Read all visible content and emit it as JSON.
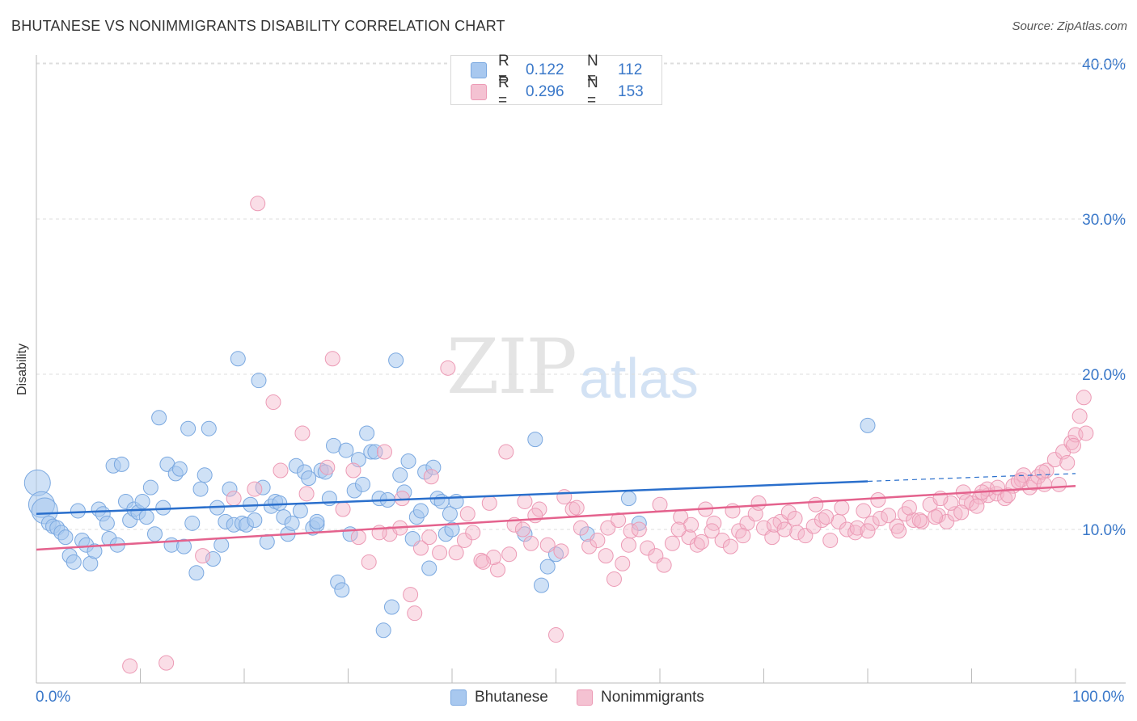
{
  "title": "BHUTANESE VS NONIMMIGRANTS DISABILITY CORRELATION CHART",
  "source": "Source: ZipAtlas.com",
  "watermark": {
    "zip": "ZIP",
    "atlas": "atlas"
  },
  "colors": {
    "blue": "#3a78c9",
    "blue_fill": "#a8c8ef",
    "pink": "#e4628d",
    "pink_fill": "#f4b6c9",
    "grid": "#dddddd"
  },
  "legend": {
    "rows": [
      {
        "r_label": "R =",
        "r_value": "0.122",
        "n_label": "N =",
        "n_value": "112"
      },
      {
        "r_label": "R =",
        "r_value": "0.296",
        "n_label": "N =",
        "n_value": "153"
      }
    ]
  },
  "chart_data": {
    "type": "scatter",
    "title": "BHUTANESE VS NONIMMIGRANTS DISABILITY CORRELATION CHART",
    "xlabel": "",
    "ylabel": "Disability",
    "xlim": [
      0,
      100
    ],
    "ylim": [
      0,
      41
    ],
    "x_tick_labels": [
      "0.0%",
      "100.0%"
    ],
    "y_ticks": [
      10,
      20,
      30,
      40
    ],
    "y_tick_labels": [
      "10.0%",
      "20.0%",
      "30.0%",
      "40.0%"
    ],
    "grid": true,
    "legend_position": "top-center",
    "series": [
      {
        "name": "Bhutanese",
        "color": "#3a78c9",
        "trend": {
          "x0": 0,
          "y0": 11.0,
          "x1": 80,
          "y1": 13.1,
          "dashed_to": 100,
          "dashed_y": 13.6
        },
        "points": [
          [
            0.1,
            13.0
          ],
          [
            0.5,
            11.6
          ],
          [
            0.8,
            11.2
          ],
          [
            1.2,
            10.4
          ],
          [
            1.6,
            10.2
          ],
          [
            2.0,
            10.1
          ],
          [
            2.4,
            9.8
          ],
          [
            2.8,
            9.5
          ],
          [
            3.2,
            8.3
          ],
          [
            3.6,
            7.9
          ],
          [
            4.0,
            11.2
          ],
          [
            4.4,
            9.3
          ],
          [
            4.8,
            9.0
          ],
          [
            5.2,
            7.8
          ],
          [
            5.6,
            8.6
          ],
          [
            6.0,
            11.3
          ],
          [
            6.4,
            11.0
          ],
          [
            6.8,
            10.4
          ],
          [
            7.0,
            9.4
          ],
          [
            7.4,
            14.1
          ],
          [
            7.8,
            9.0
          ],
          [
            8.2,
            14.2
          ],
          [
            8.6,
            11.8
          ],
          [
            9.0,
            10.6
          ],
          [
            9.4,
            11.3
          ],
          [
            9.8,
            11.1
          ],
          [
            10.2,
            11.8
          ],
          [
            10.6,
            10.8
          ],
          [
            11.0,
            12.7
          ],
          [
            11.4,
            9.7
          ],
          [
            11.8,
            17.2
          ],
          [
            12.2,
            11.4
          ],
          [
            12.6,
            14.2
          ],
          [
            13.0,
            9.0
          ],
          [
            13.4,
            13.6
          ],
          [
            13.8,
            13.9
          ],
          [
            14.2,
            8.9
          ],
          [
            14.6,
            16.5
          ],
          [
            15.0,
            10.4
          ],
          [
            15.4,
            7.2
          ],
          [
            15.8,
            12.6
          ],
          [
            16.2,
            13.5
          ],
          [
            16.6,
            16.5
          ],
          [
            17.0,
            8.1
          ],
          [
            17.4,
            11.4
          ],
          [
            17.8,
            9.0
          ],
          [
            18.2,
            10.5
          ],
          [
            18.6,
            12.6
          ],
          [
            19.0,
            10.3
          ],
          [
            19.4,
            21.0
          ],
          [
            19.8,
            10.4
          ],
          [
            20.2,
            10.3
          ],
          [
            20.6,
            11.6
          ],
          [
            21.0,
            10.6
          ],
          [
            21.4,
            19.6
          ],
          [
            21.8,
            12.7
          ],
          [
            22.2,
            9.2
          ],
          [
            22.6,
            11.5
          ],
          [
            23.0,
            11.8
          ],
          [
            23.4,
            11.7
          ],
          [
            23.8,
            10.8
          ],
          [
            24.2,
            9.7
          ],
          [
            24.6,
            10.4
          ],
          [
            25.0,
            14.1
          ],
          [
            25.4,
            11.2
          ],
          [
            25.8,
            13.7
          ],
          [
            26.2,
            13.3
          ],
          [
            26.6,
            10.1
          ],
          [
            27.0,
            10.3
          ],
          [
            27.4,
            13.8
          ],
          [
            27.8,
            13.7
          ],
          [
            28.2,
            12.0
          ],
          [
            28.6,
            15.4
          ],
          [
            29.0,
            6.6
          ],
          [
            29.4,
            6.1
          ],
          [
            29.8,
            15.1
          ],
          [
            30.2,
            9.7
          ],
          [
            30.6,
            12.5
          ],
          [
            31.0,
            14.5
          ],
          [
            31.4,
            12.9
          ],
          [
            31.8,
            16.2
          ],
          [
            32.2,
            15.0
          ],
          [
            32.6,
            15.0
          ],
          [
            33.0,
            12.0
          ],
          [
            33.4,
            3.5
          ],
          [
            33.8,
            11.9
          ],
          [
            34.2,
            5.0
          ],
          [
            34.6,
            20.9
          ],
          [
            35.0,
            13.5
          ],
          [
            35.4,
            12.4
          ],
          [
            35.8,
            14.4
          ],
          [
            36.2,
            9.4
          ],
          [
            36.6,
            10.8
          ],
          [
            37.0,
            11.2
          ],
          [
            37.4,
            13.7
          ],
          [
            37.8,
            7.5
          ],
          [
            38.2,
            14.0
          ],
          [
            38.6,
            12.0
          ],
          [
            39.0,
            11.8
          ],
          [
            39.4,
            9.7
          ],
          [
            39.8,
            11.0
          ],
          [
            40.0,
            10.0
          ],
          [
            40.4,
            11.8
          ],
          [
            47.0,
            9.7
          ],
          [
            48.0,
            15.8
          ],
          [
            48.6,
            6.4
          ],
          [
            49.2,
            7.6
          ],
          [
            50.0,
            8.4
          ],
          [
            53.0,
            9.7
          ],
          [
            57.0,
            12.0
          ],
          [
            58.0,
            10.4
          ],
          [
            80.0,
            16.7
          ],
          [
            27.0,
            10.5
          ]
        ]
      },
      {
        "name": "Nonimmigrants",
        "color": "#e4628d",
        "trend": {
          "x0": 0,
          "y0": 8.7,
          "x1": 100,
          "y1": 12.8
        },
        "points": [
          [
            9.0,
            1.2
          ],
          [
            12.5,
            1.4
          ],
          [
            16.0,
            8.3
          ],
          [
            21.3,
            31.0
          ],
          [
            22.8,
            18.2
          ],
          [
            25.6,
            16.2
          ],
          [
            28.5,
            21.0
          ],
          [
            28.0,
            14.0
          ],
          [
            29.5,
            11.3
          ],
          [
            30.5,
            13.8
          ],
          [
            31.0,
            9.5
          ],
          [
            32.0,
            7.9
          ],
          [
            33.5,
            15.0
          ],
          [
            34.0,
            9.7
          ],
          [
            35.2,
            12.0
          ],
          [
            36.0,
            5.8
          ],
          [
            36.4,
            4.6
          ],
          [
            37.0,
            8.8
          ],
          [
            37.8,
            9.5
          ],
          [
            38.8,
            8.5
          ],
          [
            39.6,
            20.4
          ],
          [
            40.4,
            8.5
          ],
          [
            41.2,
            9.3
          ],
          [
            42.0,
            9.8
          ],
          [
            42.8,
            8.0
          ],
          [
            43.6,
            11.7
          ],
          [
            44.4,
            7.4
          ],
          [
            45.2,
            15.0
          ],
          [
            46.0,
            10.3
          ],
          [
            46.8,
            10.0
          ],
          [
            47.6,
            9.1
          ],
          [
            48.4,
            11.3
          ],
          [
            49.2,
            9.0
          ],
          [
            50.0,
            3.2
          ],
          [
            50.8,
            12.1
          ],
          [
            51.6,
            11.3
          ],
          [
            52.4,
            10.1
          ],
          [
            53.2,
            8.9
          ],
          [
            54.0,
            9.3
          ],
          [
            54.8,
            8.3
          ],
          [
            55.6,
            6.8
          ],
          [
            56.4,
            7.8
          ],
          [
            57.2,
            9.9
          ],
          [
            58.0,
            10.0
          ],
          [
            58.8,
            8.8
          ],
          [
            59.6,
            8.3
          ],
          [
            60.4,
            7.7
          ],
          [
            61.2,
            9.1
          ],
          [
            62.0,
            10.8
          ],
          [
            62.8,
            9.5
          ],
          [
            63.6,
            9.0
          ],
          [
            64.4,
            11.3
          ],
          [
            65.2,
            10.4
          ],
          [
            66.0,
            9.3
          ],
          [
            66.8,
            8.9
          ],
          [
            67.6,
            9.9
          ],
          [
            68.4,
            10.4
          ],
          [
            69.2,
            11.0
          ],
          [
            70.0,
            10.1
          ],
          [
            70.8,
            9.5
          ],
          [
            71.6,
            10.5
          ],
          [
            72.4,
            11.1
          ],
          [
            73.2,
            9.8
          ],
          [
            74.0,
            9.6
          ],
          [
            74.8,
            10.2
          ],
          [
            75.6,
            10.6
          ],
          [
            76.4,
            9.3
          ],
          [
            77.2,
            10.5
          ],
          [
            78.0,
            10.0
          ],
          [
            78.8,
            9.8
          ],
          [
            79.6,
            11.2
          ],
          [
            80.4,
            10.4
          ],
          [
            81.2,
            10.7
          ],
          [
            82.0,
            10.9
          ],
          [
            82.8,
            10.2
          ],
          [
            83.6,
            11.0
          ],
          [
            84.4,
            10.6
          ],
          [
            85.2,
            10.5
          ],
          [
            86.0,
            11.6
          ],
          [
            86.8,
            10.9
          ],
          [
            87.6,
            10.5
          ],
          [
            88.4,
            11.0
          ],
          [
            89.2,
            12.4
          ],
          [
            90.0,
            11.7
          ],
          [
            90.8,
            12.1
          ],
          [
            91.6,
            12.2
          ],
          [
            92.4,
            12.3
          ],
          [
            93.2,
            12.0
          ],
          [
            94.0,
            12.8
          ],
          [
            94.8,
            13.2
          ],
          [
            95.6,
            12.7
          ],
          [
            96.4,
            13.4
          ],
          [
            97.2,
            13.8
          ],
          [
            98.0,
            14.5
          ],
          [
            98.8,
            15.0
          ],
          [
            99.6,
            15.6
          ],
          [
            100.0,
            16.1
          ],
          [
            100.4,
            17.3
          ],
          [
            100.8,
            18.5
          ],
          [
            101.0,
            16.2
          ],
          [
            19.0,
            12.0
          ],
          [
            21.0,
            12.6
          ],
          [
            23.5,
            13.8
          ],
          [
            26.0,
            12.3
          ],
          [
            33.0,
            9.8
          ],
          [
            35.0,
            10.1
          ],
          [
            38.0,
            13.4
          ],
          [
            41.5,
            11.0
          ],
          [
            44.0,
            8.2
          ],
          [
            47.0,
            11.8
          ],
          [
            52.0,
            11.4
          ],
          [
            55.0,
            10.1
          ],
          [
            57.0,
            9.0
          ],
          [
            60.0,
            11.6
          ],
          [
            63.0,
            10.3
          ],
          [
            65.0,
            9.9
          ],
          [
            68.0,
            9.6
          ],
          [
            69.5,
            11.7
          ],
          [
            71.0,
            10.3
          ],
          [
            73.0,
            10.7
          ],
          [
            75.0,
            11.6
          ],
          [
            76.0,
            10.8
          ],
          [
            77.5,
            11.4
          ],
          [
            79.0,
            10.1
          ],
          [
            81.0,
            11.9
          ],
          [
            83.0,
            9.9
          ],
          [
            85.0,
            10.6
          ],
          [
            86.5,
            10.8
          ],
          [
            88.0,
            11.7
          ],
          [
            89.5,
            11.8
          ],
          [
            90.5,
            11.5
          ],
          [
            91.5,
            12.6
          ],
          [
            92.5,
            12.7
          ],
          [
            93.5,
            12.2
          ],
          [
            95.0,
            13.5
          ],
          [
            96.0,
            13.0
          ],
          [
            97.0,
            12.9
          ],
          [
            98.4,
            12.9
          ],
          [
            99.2,
            14.3
          ],
          [
            43.0,
            7.9
          ],
          [
            45.5,
            8.4
          ],
          [
            48.0,
            10.9
          ],
          [
            50.5,
            8.6
          ],
          [
            56.0,
            10.6
          ],
          [
            61.8,
            10.0
          ],
          [
            64.0,
            9.2
          ],
          [
            67.0,
            11.2
          ],
          [
            72.0,
            10.0
          ],
          [
            80.0,
            9.9
          ],
          [
            84.0,
            11.4
          ],
          [
            87.0,
            12.0
          ],
          [
            89.0,
            11.1
          ],
          [
            91.0,
            12.4
          ],
          [
            94.5,
            13.1
          ],
          [
            96.8,
            13.7
          ],
          [
            99.8,
            15.4
          ]
        ]
      }
    ]
  }
}
